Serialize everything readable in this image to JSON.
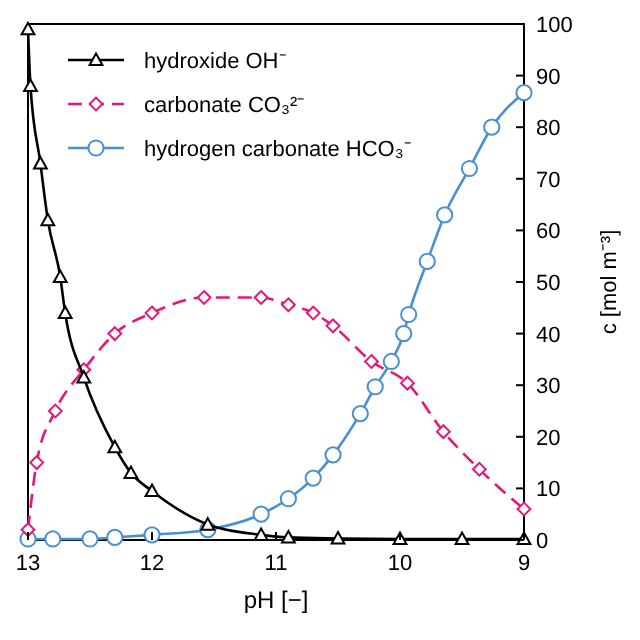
{
  "chart_data": {
    "type": "line",
    "xlabel": "pH [−]",
    "ylabel": "c [mol m⁻³]",
    "xlim": [
      13,
      9
    ],
    "xticks": [
      13,
      12,
      11,
      10,
      9
    ],
    "ylim": [
      0,
      100
    ],
    "yticks": [
      0,
      10,
      20,
      30,
      40,
      50,
      60,
      70,
      80,
      90,
      100
    ],
    "legend": "top left",
    "grid": false,
    "series": [
      {
        "name": "hydroxide OH⁻",
        "color": "#000000",
        "marker": "triangle",
        "line_style": "solid",
        "x": [
          13,
          12.98,
          12.9,
          12.84,
          12.74,
          12.7,
          12.55,
          12.3,
          12.17,
          12,
          11.55,
          11.12,
          10.9,
          10.5,
          10,
          9.5,
          9
        ],
        "values": [
          99,
          88,
          73,
          62,
          51,
          44,
          31.5,
          18,
          13,
          9.5,
          3,
          1,
          0.5,
          0.3,
          0.2,
          0.2,
          0.2
        ]
      },
      {
        "name": "carbonate CO₃²⁻",
        "color": "#e6177a",
        "marker": "diamond",
        "line_style": "dashed",
        "x": [
          13,
          12.93,
          12.78,
          12.55,
          12.3,
          12,
          11.58,
          11.12,
          10.9,
          10.7,
          10.54,
          10.23,
          9.94,
          9.65,
          9.36,
          9
        ],
        "values": [
          2,
          15,
          25,
          33,
          40,
          44,
          47,
          47,
          45.6,
          44,
          41.5,
          34.6,
          30.4,
          21,
          13.7,
          6
        ]
      },
      {
        "name": "hydrogen carbonate HCO₃⁻",
        "color": "#4a90d0",
        "marker": "circle",
        "line_style": "solid",
        "x": [
          13,
          12.8,
          12.5,
          12.3,
          12,
          11.55,
          11.12,
          10.9,
          10.7,
          10.54,
          10.32,
          10.2,
          10.07,
          9.97,
          9.93,
          9.78,
          9.64,
          9.44,
          9.26,
          9
        ],
        "values": [
          0.2,
          0.2,
          0.2,
          0.5,
          1,
          2,
          5,
          8,
          12,
          16.5,
          24.5,
          29.7,
          34.6,
          40,
          43.7,
          54,
          63,
          72,
          80,
          86.7
        ]
      }
    ]
  }
}
